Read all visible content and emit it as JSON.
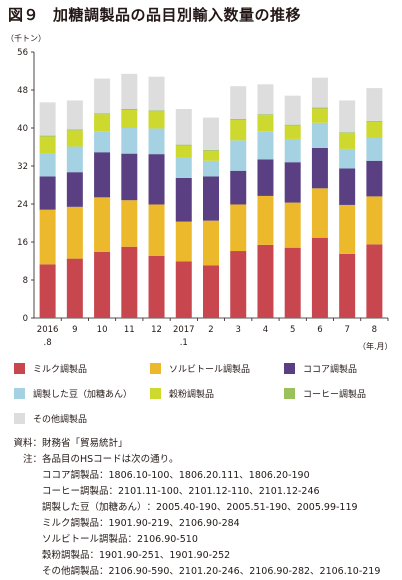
{
  "figure": {
    "number": "図９",
    "title": "加糖調製品の品目別輸入数量の推移",
    "y_unit": "（千トン）",
    "x_unit": "（年.月）"
  },
  "chart_data": {
    "type": "bar",
    "stacked": true,
    "title": "加糖調製品の品目別輸入数量の推移",
    "ylabel": "（千トン）",
    "xlabel": "（年.月）",
    "ylim": [
      0,
      56
    ],
    "yticks": [
      0,
      8,
      16,
      24,
      32,
      40,
      48,
      56
    ],
    "grid": false,
    "legend_position": "bottom",
    "categories": [
      "2016.8",
      "9",
      "10",
      "11",
      "12",
      "2017.1",
      "2",
      "3",
      "4",
      "5",
      "6",
      "7",
      "8"
    ],
    "category_labels": [
      [
        "2016",
        ".8"
      ],
      [
        "9",
        ""
      ],
      [
        "10",
        ""
      ],
      [
        "11",
        ""
      ],
      [
        "12",
        ""
      ],
      [
        "2017",
        ".1"
      ],
      [
        "2",
        ""
      ],
      [
        "3",
        ""
      ],
      [
        "4",
        ""
      ],
      [
        "5",
        ""
      ],
      [
        "6",
        ""
      ],
      [
        "7",
        ""
      ],
      [
        "8",
        ""
      ]
    ],
    "series": [
      {
        "name": "ミルク調製品",
        "color": "#c8474f",
        "values": [
          11.3,
          12.5,
          13.9,
          15.0,
          13.1,
          11.9,
          11.1,
          14.1,
          15.4,
          14.8,
          16.9,
          13.5,
          15.5
        ]
      },
      {
        "name": "ソルビトール調製品",
        "color": "#ecb92c",
        "values": [
          11.5,
          10.9,
          11.5,
          9.8,
          10.8,
          8.4,
          9.4,
          9.8,
          10.3,
          9.5,
          10.4,
          10.3,
          10.1
        ]
      },
      {
        "name": "ココア調製品",
        "color": "#5a4082",
        "values": [
          7.0,
          7.3,
          9.5,
          9.8,
          10.6,
          9.2,
          9.3,
          7.1,
          7.7,
          8.5,
          8.5,
          7.7,
          7.5
        ]
      },
      {
        "name": "調製した豆（加糖あん）",
        "color": "#a4d2e2",
        "values": [
          4.8,
          5.4,
          4.4,
          5.4,
          5.4,
          4.2,
          3.3,
          6.4,
          5.9,
          4.9,
          5.3,
          4.1,
          4.8
        ]
      },
      {
        "name": "穀粉調製品",
        "color": "#cdd92f",
        "values": [
          3.6,
          3.4,
          3.6,
          3.8,
          3.6,
          2.6,
          2.1,
          4.3,
          3.4,
          2.8,
          3.0,
          3.3,
          3.4
        ]
      },
      {
        "name": "コーヒー調製品",
        "color": "#9bc25a",
        "values": [
          0.2,
          0.2,
          0.2,
          0.2,
          0.2,
          0.2,
          0.2,
          0.2,
          0.2,
          0.2,
          0.2,
          0.2,
          0.2
        ]
      },
      {
        "name": "その他調製品",
        "color": "#dddddd",
        "values": [
          7.0,
          6.1,
          7.3,
          7.4,
          7.1,
          7.5,
          6.8,
          6.9,
          6.3,
          6.1,
          6.3,
          6.7,
          6.9
        ]
      }
    ]
  },
  "notes": {
    "source_label": "資料：",
    "source_text": "財務省「貿易統計」",
    "note_label": "注：",
    "note_text": "各品目のHSコードは次の通り。",
    "hs_codes": [
      {
        "name": "ココア調製品",
        "codes": "：1806.10-100、1806.20.111、1806.20-190"
      },
      {
        "name": "コーヒー調製品",
        "codes": "：2101.11-100、2101.12-110、2101.12-246"
      },
      {
        "name": "調製した豆（加糖あん）",
        "codes": "：2005.40-190、2005.51-190、2005.99-119"
      },
      {
        "name": "ミルク調製品",
        "codes": "：1901.90-219、2106.90-284"
      },
      {
        "name": "ソルビトール調製品",
        "codes": "：2106.90-510"
      },
      {
        "name": "穀粉調製品",
        "codes": "：1901.90-251、1901.90-252"
      },
      {
        "name": "その他調製品",
        "codes": "：2106.90-590、2101.20-246、2106.90-282、2106.10-219"
      }
    ]
  }
}
